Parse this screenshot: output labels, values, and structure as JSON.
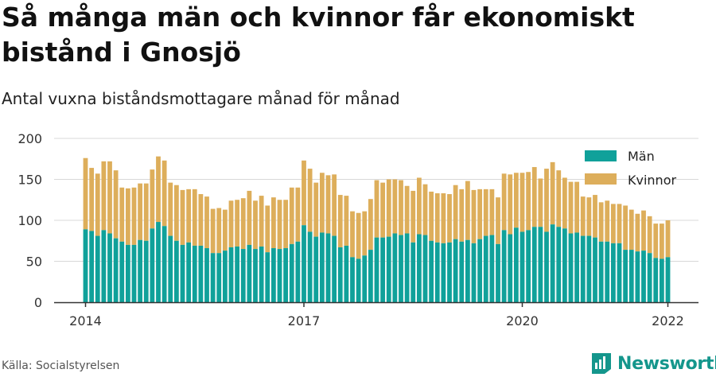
{
  "title": "Så många män och kvinnor får ekonomiskt bistånd i Gnosjö",
  "subtitle": "Antal vuxna biståndsmottagare månad för månad",
  "source": "Källa: Socialstyrelsen",
  "brand": "Newsworthy",
  "colors": {
    "men": "#10a19a",
    "women": "#ddae5b",
    "grid": "#d8d8d8",
    "text": "#333333"
  },
  "chart_data": {
    "type": "bar",
    "stacked": true,
    "legend_position": "top-right",
    "grid": true,
    "ylim": [
      0,
      200
    ],
    "y_ticks": [
      "0",
      "50",
      "100",
      "150",
      "200"
    ],
    "x_ticks": [
      {
        "label": "2014",
        "index": 0
      },
      {
        "label": "2017",
        "index": 36
      },
      {
        "label": "2020",
        "index": 72
      },
      {
        "label": "2022",
        "index": 96
      }
    ],
    "series": [
      {
        "name": "Män",
        "values": [
          89,
          87,
          81,
          88,
          84,
          78,
          74,
          70,
          70,
          76,
          75,
          90,
          98,
          93,
          81,
          75,
          70,
          73,
          69,
          69,
          66,
          60,
          60,
          63,
          67,
          68,
          65,
          70,
          65,
          68,
          61,
          66,
          65,
          66,
          71,
          74,
          94,
          86,
          80,
          85,
          84,
          81,
          67,
          69,
          55,
          53,
          57,
          64,
          79,
          79,
          80,
          84,
          82,
          84,
          73,
          83,
          82,
          75,
          73,
          72,
          73,
          77,
          74,
          76,
          72,
          77,
          81,
          82,
          71,
          88,
          83,
          91,
          86,
          88,
          92,
          92,
          86,
          95,
          92,
          90,
          84,
          85,
          81,
          81,
          79,
          74,
          74,
          72,
          72,
          64,
          64,
          62,
          63,
          60,
          54,
          53,
          55
        ]
      },
      {
        "name": "Kvinnor",
        "values": [
          87,
          77,
          76,
          84,
          88,
          83,
          66,
          69,
          70,
          69,
          70,
          72,
          80,
          80,
          65,
          68,
          67,
          65,
          69,
          63,
          63,
          54,
          55,
          50,
          57,
          57,
          62,
          66,
          59,
          62,
          57,
          62,
          60,
          59,
          69,
          66,
          79,
          77,
          66,
          73,
          71,
          75,
          64,
          61,
          56,
          56,
          54,
          62,
          70,
          67,
          70,
          66,
          67,
          58,
          63,
          69,
          62,
          60,
          60,
          61,
          59,
          66,
          64,
          72,
          65,
          61,
          57,
          56,
          57,
          69,
          73,
          67,
          72,
          71,
          73,
          59,
          77,
          76,
          69,
          62,
          63,
          62,
          48,
          47,
          52,
          48,
          50,
          48,
          48,
          54,
          49,
          46,
          49,
          45,
          42,
          43,
          45
        ]
      }
    ]
  }
}
